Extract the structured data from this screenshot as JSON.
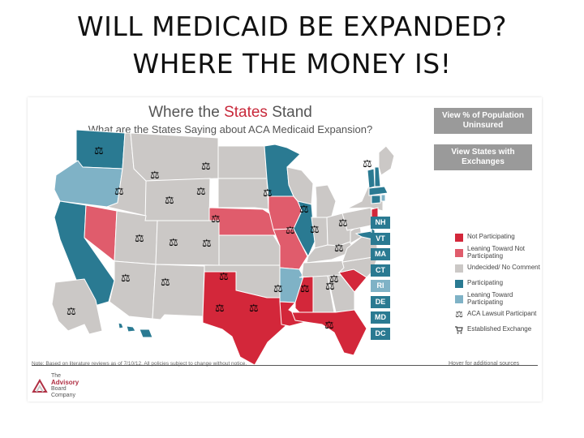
{
  "slide": {
    "title_line1": "WILL MEDICAID BE EXPANDED?",
    "title_line2": "WHERE THE MONEY IS!"
  },
  "map": {
    "heading_prefix": "Where the ",
    "heading_accent": "States",
    "heading_suffix": " Stand",
    "subheading": "What are the States Saying about ACA Medicaid Expansion?",
    "colors": {
      "not_participating": "#d3273a",
      "leaning_not": "#e05c6c",
      "undecided": "#cbc8c6",
      "participating": "#2a7a92",
      "leaning_participating": "#7fb2c6",
      "border": "#ffffff"
    },
    "buttons": {
      "view_uninsured": "View % of Population Uninsured",
      "view_exchanges": "View States with Exchanges"
    },
    "small_states": [
      {
        "abbr": "NH",
        "status": "participating"
      },
      {
        "abbr": "VT",
        "status": "participating"
      },
      {
        "abbr": "MA",
        "status": "participating"
      },
      {
        "abbr": "CT",
        "status": "participating"
      },
      {
        "abbr": "RI",
        "status": "leaning_participating"
      },
      {
        "abbr": "DE",
        "status": "participating"
      },
      {
        "abbr": "MD",
        "status": "participating"
      },
      {
        "abbr": "DC",
        "status": "participating"
      }
    ],
    "legend": [
      {
        "label": "Not Participating",
        "kind": "swatch",
        "status": "not_participating"
      },
      {
        "label": "Leaning Toward Not Participating",
        "kind": "swatch",
        "status": "leaning_not"
      },
      {
        "label": "Undecided/ No Comment",
        "kind": "swatch",
        "status": "undecided"
      },
      {
        "label": "Participating",
        "kind": "swatch",
        "status": "participating"
      },
      {
        "label": "Leaning Toward Participating",
        "kind": "swatch",
        "status": "leaning_participating"
      },
      {
        "label": "ACA Lawsuit Participant",
        "kind": "scale-icon"
      },
      {
        "label": "Established Exchange",
        "kind": "cart-icon"
      }
    ],
    "note": "Note: Based on literature reviews as of 7/10/12. All policies subject to change without notice.",
    "hover_note": "Hover for additional sources",
    "logo": {
      "line1": "The",
      "line2": "Advisory",
      "line3": "Board",
      "line4": "Company"
    },
    "lawsuit_icon_glyph": "⚖"
  }
}
